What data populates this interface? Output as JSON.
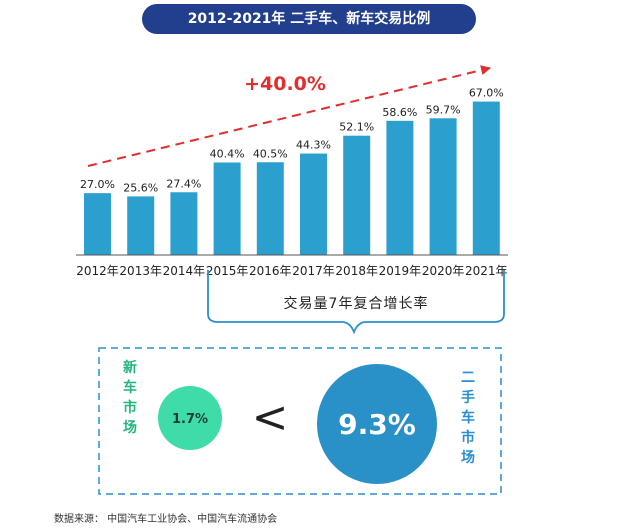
{
  "colors": {
    "title_bg": "#213f8d",
    "bar": "#2ba0cf",
    "arrow": "#e02f2f",
    "bracket": "#2a8fcf",
    "new_circle": "#3fdcaa",
    "used_circle": "#2a90c8",
    "new_text": "#22b57e",
    "used_text": "#2a8fcf"
  },
  "chart_data": {
    "type": "bar",
    "title": "2012-2021年 二手车、新车交易比例",
    "categories": [
      "2012年",
      "2013年",
      "2014年",
      "2015年",
      "2016年",
      "2017年",
      "2018年",
      "2019年",
      "2020年",
      "2021年"
    ],
    "values": [
      27.0,
      25.6,
      27.4,
      40.4,
      40.5,
      44.3,
      52.1,
      58.6,
      59.7,
      67.0
    ],
    "value_labels": [
      "27.0%",
      "25.6%",
      "27.4%",
      "40.4%",
      "40.5%",
      "44.3%",
      "52.1%",
      "58.6%",
      "59.7%",
      "67.0%"
    ],
    "ylim": [
      0,
      70
    ],
    "trend_label": "+40.0%",
    "bracket_label": "交易量7年复合增长率",
    "comparison": {
      "new_market_label": "新车市场",
      "new_market_value": "1.7%",
      "operator": "<",
      "used_market_value": "9.3%",
      "used_market_label": "二手车市场"
    }
  },
  "footer": {
    "source": "数据来源：  中国汽车工业协会、中国汽车流通协会"
  }
}
